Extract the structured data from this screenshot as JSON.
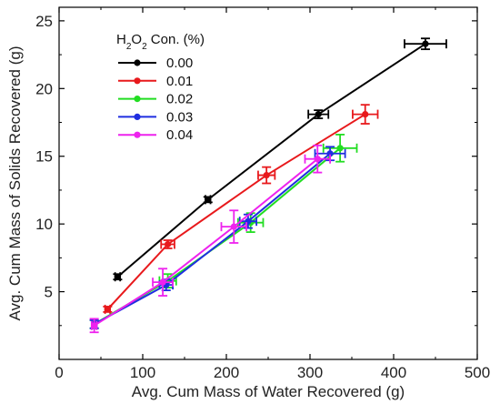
{
  "chart_data": {
    "type": "line",
    "xlabel": "Avg. Cum Mass of Water Recovered (g)",
    "ylabel": "Avg. Cum Mass of Solids Recovered (g)",
    "xlim": [
      0,
      500
    ],
    "ylim": [
      0,
      26
    ],
    "xticks": [
      0,
      100,
      200,
      300,
      400,
      500
    ],
    "yticks": [
      5,
      10,
      15,
      20,
      25
    ],
    "legend_title": "H2O2 Con. (%)",
    "legend_position": "top-left",
    "grid": false,
    "series": [
      {
        "name": "0.00",
        "color": "#000000",
        "points": [
          {
            "x": 70,
            "y": 6.1,
            "xerr": 3,
            "yerr": 0.2
          },
          {
            "x": 178,
            "y": 11.8,
            "xerr": 3,
            "yerr": 0.2
          },
          {
            "x": 310,
            "y": 18.1,
            "xerr": 12,
            "yerr": 0.3
          },
          {
            "x": 438,
            "y": 23.3,
            "xerr": 25,
            "yerr": 0.4
          }
        ]
      },
      {
        "name": "0.01",
        "color": "#e8191c",
        "points": [
          {
            "x": 58,
            "y": 3.7,
            "xerr": 3,
            "yerr": 0.2
          },
          {
            "x": 130,
            "y": 8.5,
            "xerr": 8,
            "yerr": 0.3
          },
          {
            "x": 248,
            "y": 13.6,
            "xerr": 10,
            "yerr": 0.6
          },
          {
            "x": 366,
            "y": 18.1,
            "xerr": 15,
            "yerr": 0.7
          }
        ]
      },
      {
        "name": "0.02",
        "color": "#22dd22",
        "points": [
          {
            "x": 42,
            "y": 2.6,
            "xerr": 3,
            "yerr": 0.3
          },
          {
            "x": 130,
            "y": 5.8,
            "xerr": 10,
            "yerr": 0.5
          },
          {
            "x": 229,
            "y": 10.1,
            "xerr": 15,
            "yerr": 0.7
          },
          {
            "x": 336,
            "y": 15.6,
            "xerr": 20,
            "yerr": 1.0
          }
        ]
      },
      {
        "name": "0.03",
        "color": "#1f2ee0",
        "points": [
          {
            "x": 42,
            "y": 2.6,
            "xerr": 3,
            "yerr": 0.3
          },
          {
            "x": 128,
            "y": 5.5,
            "xerr": 8,
            "yerr": 0.4
          },
          {
            "x": 226,
            "y": 10.2,
            "xerr": 10,
            "yerr": 0.5
          },
          {
            "x": 324,
            "y": 15.2,
            "xerr": 18,
            "yerr": 0.5
          }
        ]
      },
      {
        "name": "0.04",
        "color": "#ee22ee",
        "points": [
          {
            "x": 42,
            "y": 2.5,
            "xerr": 3,
            "yerr": 0.5
          },
          {
            "x": 124,
            "y": 5.7,
            "xerr": 12,
            "yerr": 1.0
          },
          {
            "x": 209,
            "y": 9.8,
            "xerr": 15,
            "yerr": 1.2
          },
          {
            "x": 309,
            "y": 14.8,
            "xerr": 15,
            "yerr": 1.0
          }
        ]
      }
    ]
  }
}
